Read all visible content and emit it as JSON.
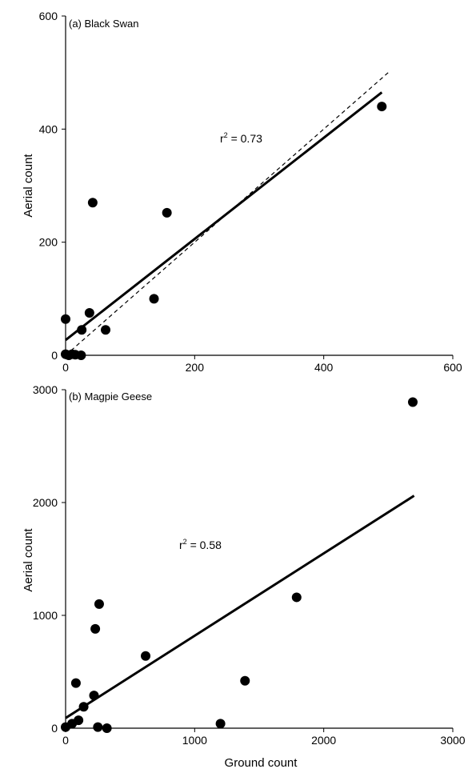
{
  "chart_data": [
    {
      "type": "scatter",
      "panel_label": "(a) Black Swan",
      "xlabel": "",
      "ylabel": "Aerial count",
      "xlim": [
        0,
        600
      ],
      "ylim": [
        0,
        600
      ],
      "x_ticks": [
        0,
        200,
        400,
        600
      ],
      "y_ticks": [
        0,
        200,
        400,
        600
      ],
      "points": [
        {
          "x": 0,
          "y": 64
        },
        {
          "x": 0,
          "y": 2
        },
        {
          "x": 5,
          "y": 0
        },
        {
          "x": 10,
          "y": 2
        },
        {
          "x": 15,
          "y": 1
        },
        {
          "x": 24,
          "y": 0
        },
        {
          "x": 25,
          "y": 45
        },
        {
          "x": 37,
          "y": 75
        },
        {
          "x": 42,
          "y": 270
        },
        {
          "x": 62,
          "y": 45
        },
        {
          "x": 137,
          "y": 100
        },
        {
          "x": 157,
          "y": 252
        },
        {
          "x": 490,
          "y": 440
        }
      ],
      "regression_line": {
        "x": [
          0,
          490
        ],
        "y": [
          27,
          465
        ]
      },
      "reference_line": {
        "x": [
          0,
          500
        ],
        "y": [
          0,
          500
        ],
        "style": "dashed"
      },
      "r2": {
        "prefix": "r",
        "superscript": "2",
        "value": " = 0.73"
      }
    },
    {
      "type": "scatter",
      "panel_label": "(b) Magpie Geese",
      "xlabel": "Ground count",
      "ylabel": "Aerial count",
      "xlim": [
        0,
        3000
      ],
      "ylim": [
        0,
        3000
      ],
      "x_ticks": [
        0,
        1000,
        2000,
        3000
      ],
      "y_ticks": [
        0,
        1000,
        2000,
        3000
      ],
      "points": [
        {
          "x": 0,
          "y": 10
        },
        {
          "x": 50,
          "y": 40
        },
        {
          "x": 80,
          "y": 400
        },
        {
          "x": 100,
          "y": 70
        },
        {
          "x": 140,
          "y": 190
        },
        {
          "x": 220,
          "y": 290
        },
        {
          "x": 230,
          "y": 880
        },
        {
          "x": 250,
          "y": 10
        },
        {
          "x": 260,
          "y": 1100
        },
        {
          "x": 320,
          "y": 0
        },
        {
          "x": 620,
          "y": 640
        },
        {
          "x": 1200,
          "y": 40
        },
        {
          "x": 1390,
          "y": 420
        },
        {
          "x": 1790,
          "y": 1160
        },
        {
          "x": 2690,
          "y": 2890
        }
      ],
      "regression_line": {
        "x": [
          0,
          2700
        ],
        "y": [
          90,
          2060
        ]
      },
      "r2": {
        "prefix": "r",
        "superscript": "2",
        "value": " = 0.58"
      }
    }
  ]
}
